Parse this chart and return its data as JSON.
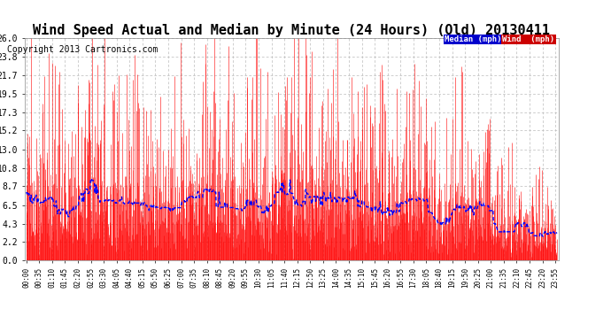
{
  "title": "Wind Speed Actual and Median by Minute (24 Hours) (Old) 20130411",
  "copyright": "Copyright 2013 Cartronics.com",
  "legend_median": "Median (mph)",
  "legend_wind": "Wind  (mph)",
  "yticks": [
    0.0,
    2.2,
    4.3,
    6.5,
    8.7,
    10.8,
    13.0,
    15.2,
    17.3,
    19.5,
    21.7,
    23.8,
    26.0
  ],
  "ylim": [
    0.0,
    26.0
  ],
  "bg_color": "#ffffff",
  "plot_bg_color": "#ffffff",
  "grid_color": "#bbbbbb",
  "wind_color": "#ff0000",
  "median_color": "#0000ff",
  "title_fontsize": 11,
  "copyright_fontsize": 7,
  "legend_bg_median": "#0000cc",
  "legend_bg_wind": "#cc0000",
  "legend_text_color": "#ffffff",
  "seed": 12345,
  "n_minutes": 1440,
  "tick_interval": 35
}
